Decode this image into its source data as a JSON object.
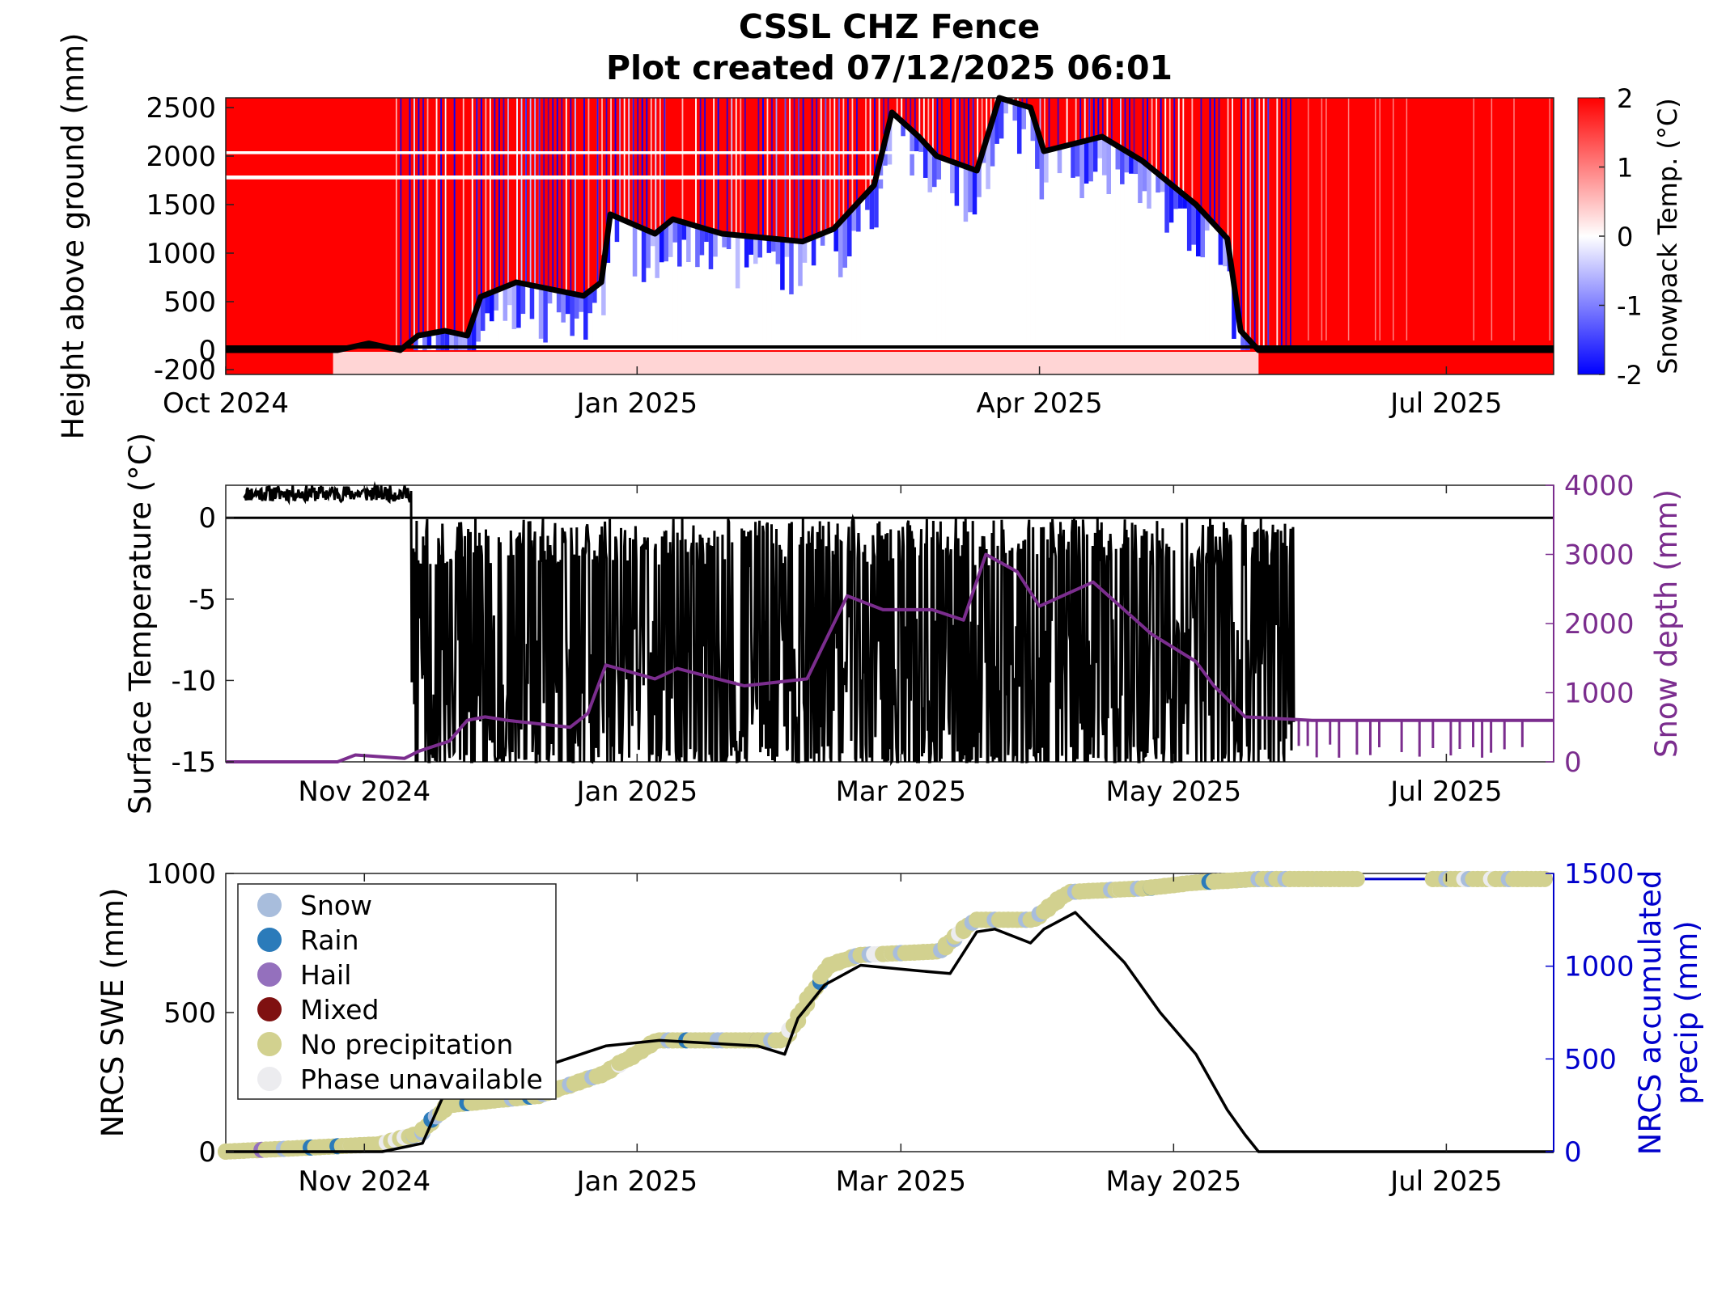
{
  "title": "CSSL CHZ Fence",
  "subtitle": "Plot created 07/12/2025 06:01",
  "colors": {
    "warm": "#ff0000",
    "cold": "#0000ff",
    "depth_line": "#000000",
    "temp_line": "#000000",
    "snow_depth_line": "#7b2d8e",
    "swe_line": "#000000",
    "precip_line": "#0000cc",
    "snow_marker": "#a8bddc",
    "rain_marker": "#2b7bba",
    "hail_marker": "#9470bd",
    "mixed_marker": "#7f1111",
    "no_precip_marker": "#d2d18f",
    "phase_unavailable_marker": "#ececef"
  },
  "chart_data": [
    {
      "type": "heatmap",
      "ylabel": "Height above ground (mm)",
      "colorbar_label": "Snowpack Temp. (°C)",
      "colorbar_range": [
        -2,
        2
      ],
      "colorbar_ticks": [
        "2",
        "1",
        "0",
        "-1",
        "-2"
      ],
      "xlim": [
        "2024-10-01",
        "2025-07-25"
      ],
      "ylim": [
        -250,
        2600
      ],
      "x_ticks": [
        "Oct 2024",
        "Jan 2025",
        "Apr 2025",
        "Jul 2025"
      ],
      "x_tick_dates": [
        "2024-10-01",
        "2025-01-01",
        "2025-04-01",
        "2025-07-01"
      ],
      "y_ticks": [
        "2500",
        "2000",
        "1500",
        "1000",
        "500",
        "0",
        "-200"
      ],
      "y_tick_values": [
        2500,
        2000,
        1500,
        1000,
        500,
        0,
        -200
      ],
      "snow_depth_overlay": {
        "x": [
          "2024-10-01",
          "2024-10-26",
          "2024-11-02",
          "2024-11-09",
          "2024-11-13",
          "2024-11-19",
          "2024-11-24",
          "2024-11-27",
          "2024-12-05",
          "2024-12-20",
          "2024-12-24",
          "2024-12-26",
          "2025-01-05",
          "2025-01-09",
          "2025-01-20",
          "2025-02-07",
          "2025-02-14",
          "2025-02-23",
          "2025-02-27",
          "2025-03-05",
          "2025-03-09",
          "2025-03-18",
          "2025-03-23",
          "2025-03-30",
          "2025-04-02",
          "2025-04-15",
          "2025-04-24",
          "2025-05-06",
          "2025-05-13",
          "2025-05-16",
          "2025-05-20",
          "2025-07-25"
        ],
        "y": [
          0,
          0,
          70,
          0,
          150,
          200,
          150,
          550,
          700,
          560,
          700,
          1400,
          1200,
          1350,
          1200,
          1120,
          1250,
          1700,
          2450,
          2200,
          2000,
          1850,
          2600,
          2500,
          2050,
          2200,
          1950,
          1500,
          1150,
          200,
          0,
          0
        ]
      }
    },
    {
      "type": "line",
      "ylabel": "Surface Temperature (°C)",
      "y2label": "Snow depth (mm)",
      "xlim": [
        "2024-10-01",
        "2025-07-25"
      ],
      "ylim": [
        -15,
        2
      ],
      "y2lim": [
        0,
        4000
      ],
      "x_ticks": [
        "Nov 2024",
        "Jan 2025",
        "Mar 2025",
        "May 2025",
        "Jul 2025"
      ],
      "x_tick_dates": [
        "2024-11-01",
        "2025-01-01",
        "2025-03-01",
        "2025-05-01",
        "2025-07-01"
      ],
      "y_ticks": [
        "0",
        "-5",
        "-10",
        "-15"
      ],
      "y_tick_values": [
        0,
        -5,
        -10,
        -15
      ],
      "y2_ticks": [
        "4000",
        "3000",
        "2000",
        "1000",
        "0"
      ],
      "y2_tick_values": [
        4000,
        3000,
        2000,
        1000,
        0
      ],
      "snow_depth": {
        "x": [
          "2024-10-01",
          "2024-10-26",
          "2024-10-30",
          "2024-11-10",
          "2024-11-13",
          "2024-11-20",
          "2024-11-24",
          "2024-11-28",
          "2024-12-03",
          "2024-12-17",
          "2024-12-21",
          "2024-12-25",
          "2025-01-05",
          "2025-01-10",
          "2025-01-25",
          "2025-02-08",
          "2025-02-17",
          "2025-02-25",
          "2025-03-08",
          "2025-03-15",
          "2025-03-20",
          "2025-03-27",
          "2025-04-01",
          "2025-04-13",
          "2025-04-26",
          "2025-05-06",
          "2025-05-10",
          "2025-05-17",
          "2025-06-01",
          "2025-07-25"
        ],
        "y": [
          0,
          0,
          100,
          50,
          150,
          300,
          600,
          650,
          600,
          500,
          700,
          1400,
          1200,
          1350,
          1100,
          1200,
          2400,
          2200,
          2200,
          2050,
          3000,
          2750,
          2250,
          2600,
          1850,
          1450,
          1100,
          650,
          600,
          600
        ]
      },
      "zero_line": 0
    },
    {
      "type": "line",
      "ylabel": "NRCS SWE (mm)",
      "y2label": "NRCS accumulated precip (mm)",
      "xlim": [
        "2024-10-01",
        "2025-07-25"
      ],
      "ylim": [
        0,
        1000
      ],
      "y2lim": [
        0,
        1500
      ],
      "x_ticks": [
        "Nov 2024",
        "Jan 2025",
        "Mar 2025",
        "May 2025",
        "Jul 2025"
      ],
      "x_tick_dates": [
        "2024-11-01",
        "2025-01-01",
        "2025-03-01",
        "2025-05-01",
        "2025-07-01"
      ],
      "y_ticks": [
        "1000",
        "500",
        "0"
      ],
      "y_tick_values": [
        1000,
        500,
        0
      ],
      "y2_ticks": [
        "1500",
        "1000",
        "500",
        "0"
      ],
      "y2_tick_values": [
        1500,
        1000,
        500,
        0
      ],
      "swe": {
        "x": [
          "2024-10-01",
          "2024-11-05",
          "2024-11-14",
          "2024-11-20",
          "2024-12-10",
          "2024-12-25",
          "2025-01-06",
          "2025-01-28",
          "2025-02-03",
          "2025-02-06",
          "2025-02-12",
          "2025-02-20",
          "2025-03-05",
          "2025-03-12",
          "2025-03-18",
          "2025-03-22",
          "2025-03-30",
          "2025-04-02",
          "2025-04-09",
          "2025-04-20",
          "2025-04-28",
          "2025-05-06",
          "2025-05-13",
          "2025-05-17",
          "2025-05-20",
          "2025-07-25"
        ],
        "y": [
          0,
          0,
          30,
          250,
          300,
          380,
          400,
          380,
          350,
          480,
          600,
          670,
          650,
          640,
          790,
          800,
          750,
          800,
          860,
          680,
          500,
          350,
          150,
          60,
          0,
          0
        ]
      },
      "accumulated_precip": {
        "x": [
          "2024-10-01",
          "2024-11-05",
          "2024-11-14",
          "2024-11-20",
          "2024-12-10",
          "2024-12-25",
          "2025-01-06",
          "2025-02-03",
          "2025-02-06",
          "2025-02-13",
          "2025-02-20",
          "2025-03-10",
          "2025-03-18",
          "2025-03-31",
          "2025-04-08",
          "2025-04-25",
          "2025-05-06",
          "2025-05-20",
          "2025-07-25"
        ],
        "y": [
          0,
          40,
          100,
          250,
          300,
          420,
          600,
          600,
          700,
          1000,
          1060,
          1080,
          1250,
          1250,
          1400,
          1420,
          1450,
          1470,
          1470
        ]
      },
      "legend": {
        "position": "top-left",
        "entries": [
          "Snow",
          "Rain",
          "Hail",
          "Mixed",
          "No precipitation",
          "Phase unavailable"
        ]
      }
    }
  ]
}
